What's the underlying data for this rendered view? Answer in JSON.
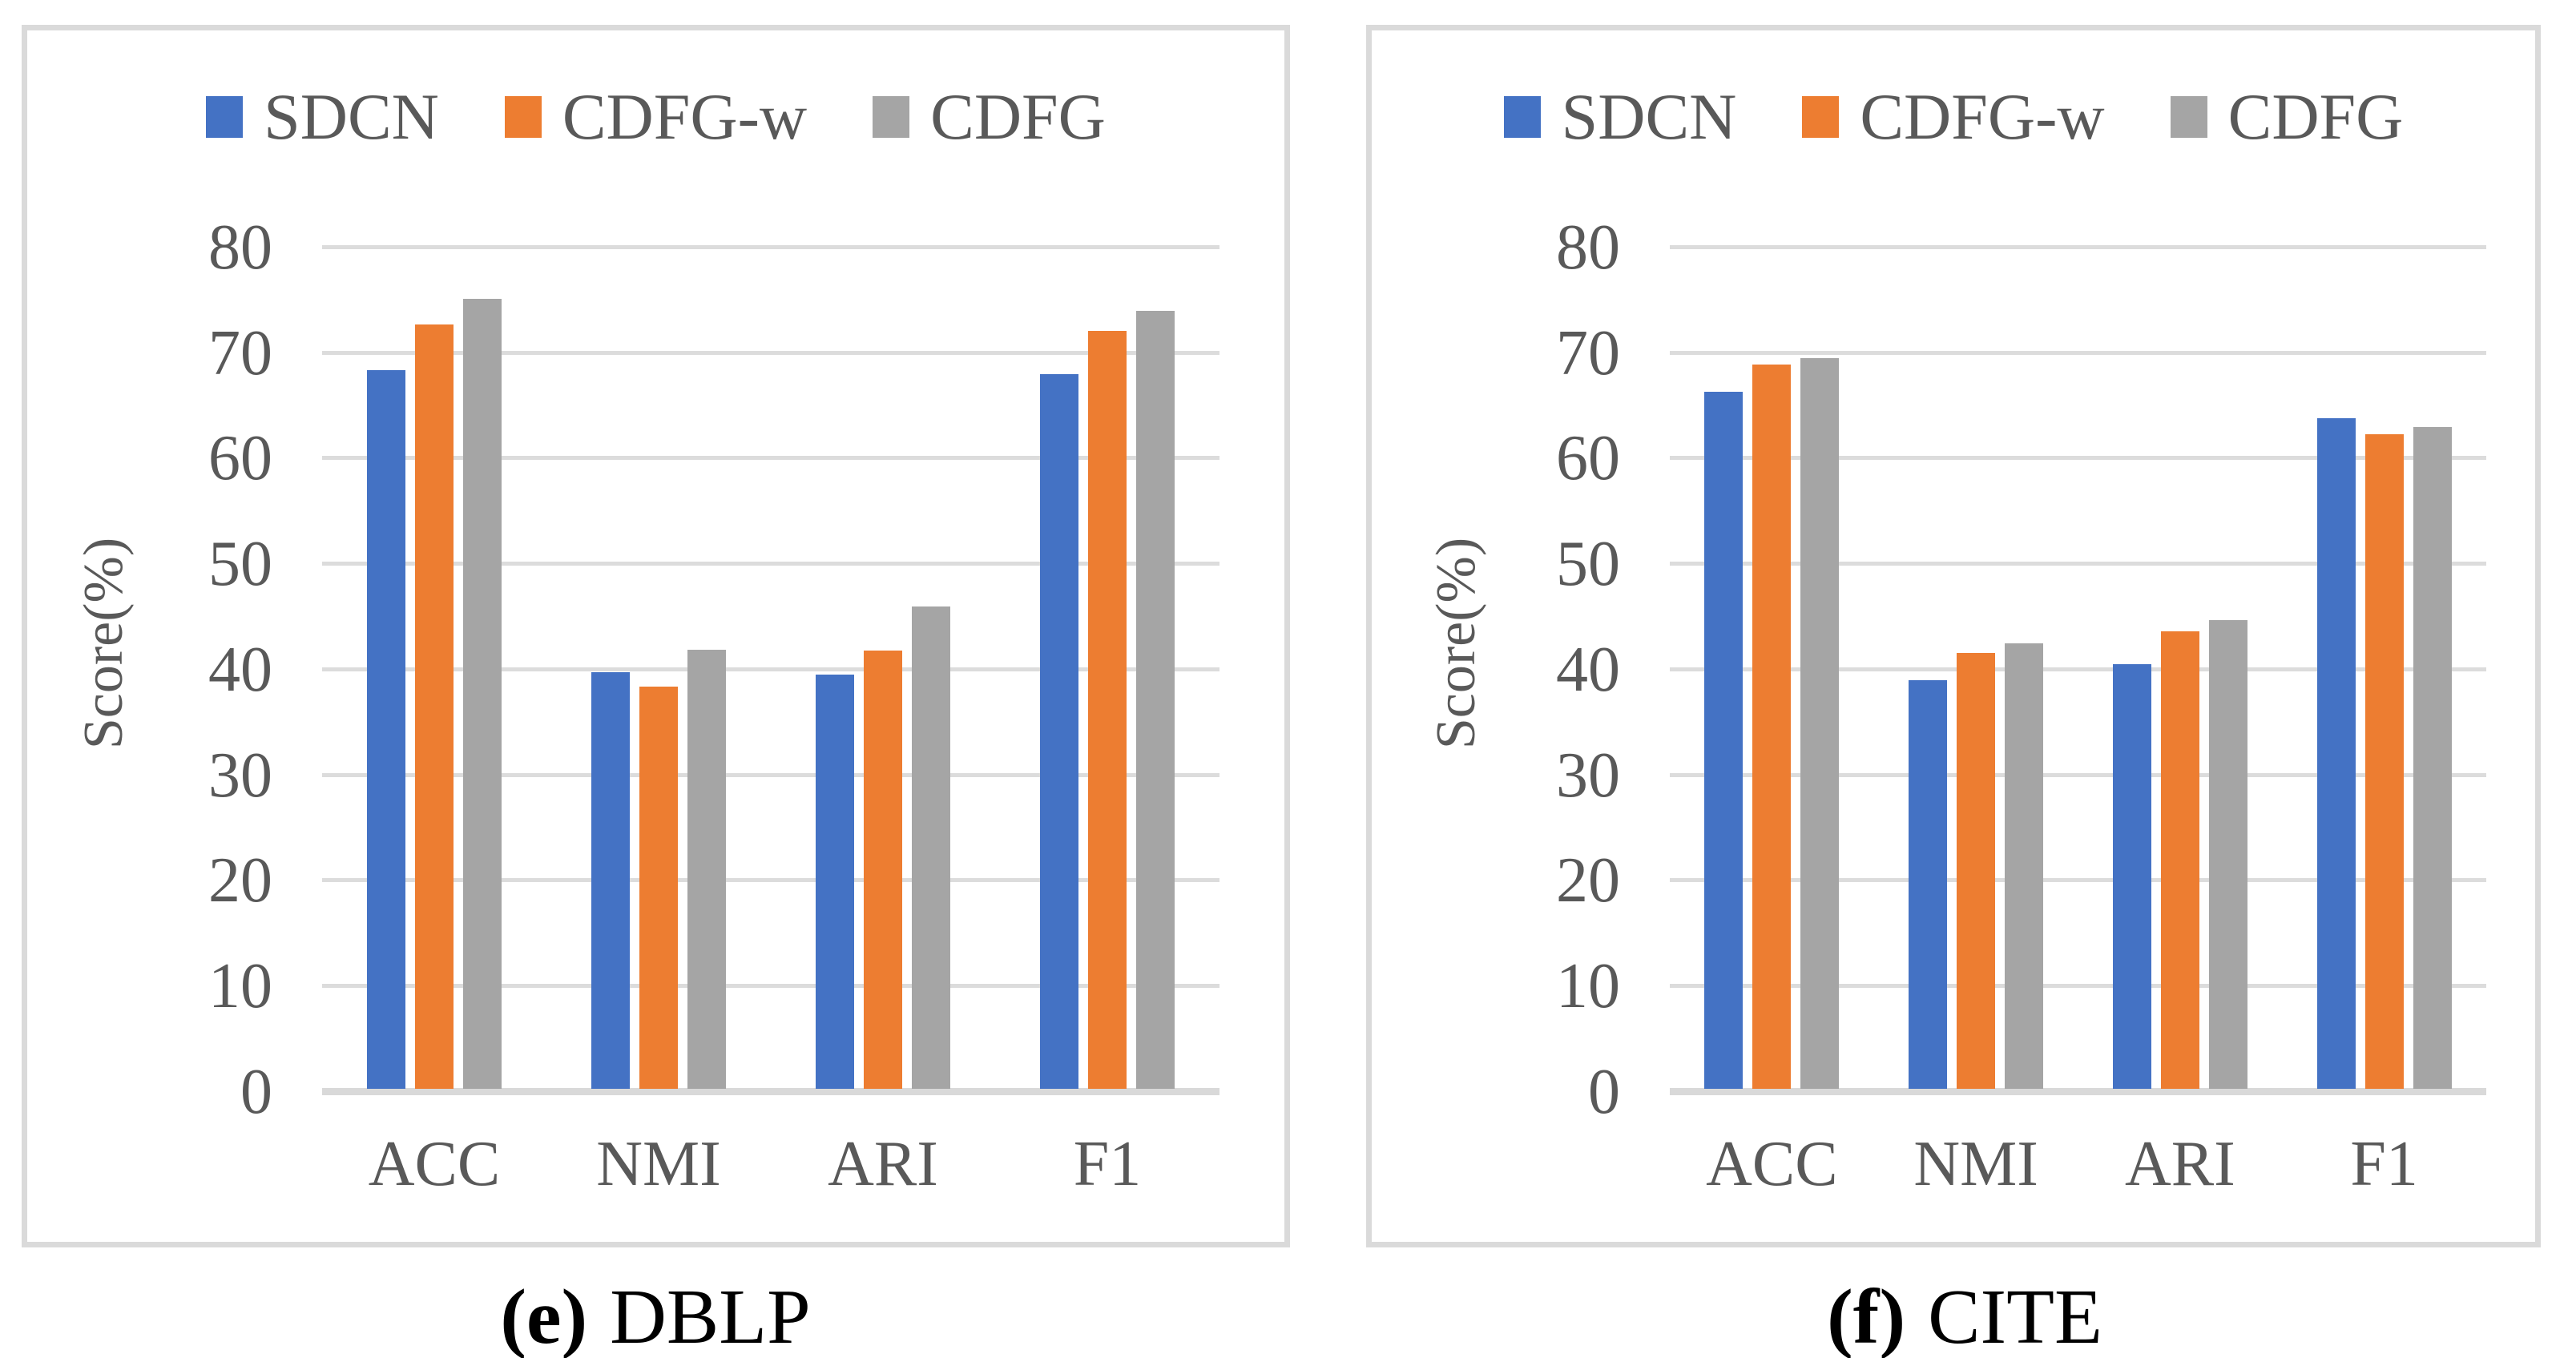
{
  "chart_data": [
    {
      "type": "bar",
      "caption": {
        "label": "(e)",
        "text": "DBLP"
      },
      "ylabel": "Score(%)",
      "ylim": [
        0,
        80
      ],
      "y_ticks": [
        0,
        10,
        20,
        30,
        40,
        50,
        60,
        70,
        80
      ],
      "grid": true,
      "legend_position": "top",
      "categories": [
        "ACC",
        "NMI",
        "ARI",
        "F1"
      ],
      "series": [
        {
          "name": "SDCN",
          "color": "#4472C4",
          "values": [
            68.1,
            39.5,
            39.2,
            67.7
          ]
        },
        {
          "name": "CDFG-w",
          "color": "#ED7D31",
          "values": [
            72.4,
            38.1,
            41.5,
            71.8
          ]
        },
        {
          "name": "CDFG",
          "color": "#A5A5A5",
          "values": [
            74.8,
            41.6,
            45.7,
            73.7
          ]
        }
      ]
    },
    {
      "type": "bar",
      "caption": {
        "label": "(f)",
        "text": "CITE"
      },
      "ylabel": "Score(%)",
      "ylim": [
        0,
        80
      ],
      "y_ticks": [
        0,
        10,
        20,
        30,
        40,
        50,
        60,
        70,
        80
      ],
      "grid": true,
      "legend_position": "top",
      "categories": [
        "ACC",
        "NMI",
        "ARI",
        "F1"
      ],
      "series": [
        {
          "name": "SDCN",
          "color": "#4472C4",
          "values": [
            66.0,
            38.7,
            40.2,
            63.5
          ]
        },
        {
          "name": "CDFG-w",
          "color": "#ED7D31",
          "values": [
            68.6,
            41.3,
            43.3,
            62.0
          ]
        },
        {
          "name": "CDFG",
          "color": "#A5A5A5",
          "values": [
            69.2,
            42.2,
            44.4,
            62.7
          ]
        }
      ]
    }
  ],
  "colors": {
    "axis_text": "#595959",
    "gridline": "#DCDCDC",
    "axis_line": "#D9D9D9",
    "panel_border": "#DADADA",
    "caption_text": "#000000"
  }
}
